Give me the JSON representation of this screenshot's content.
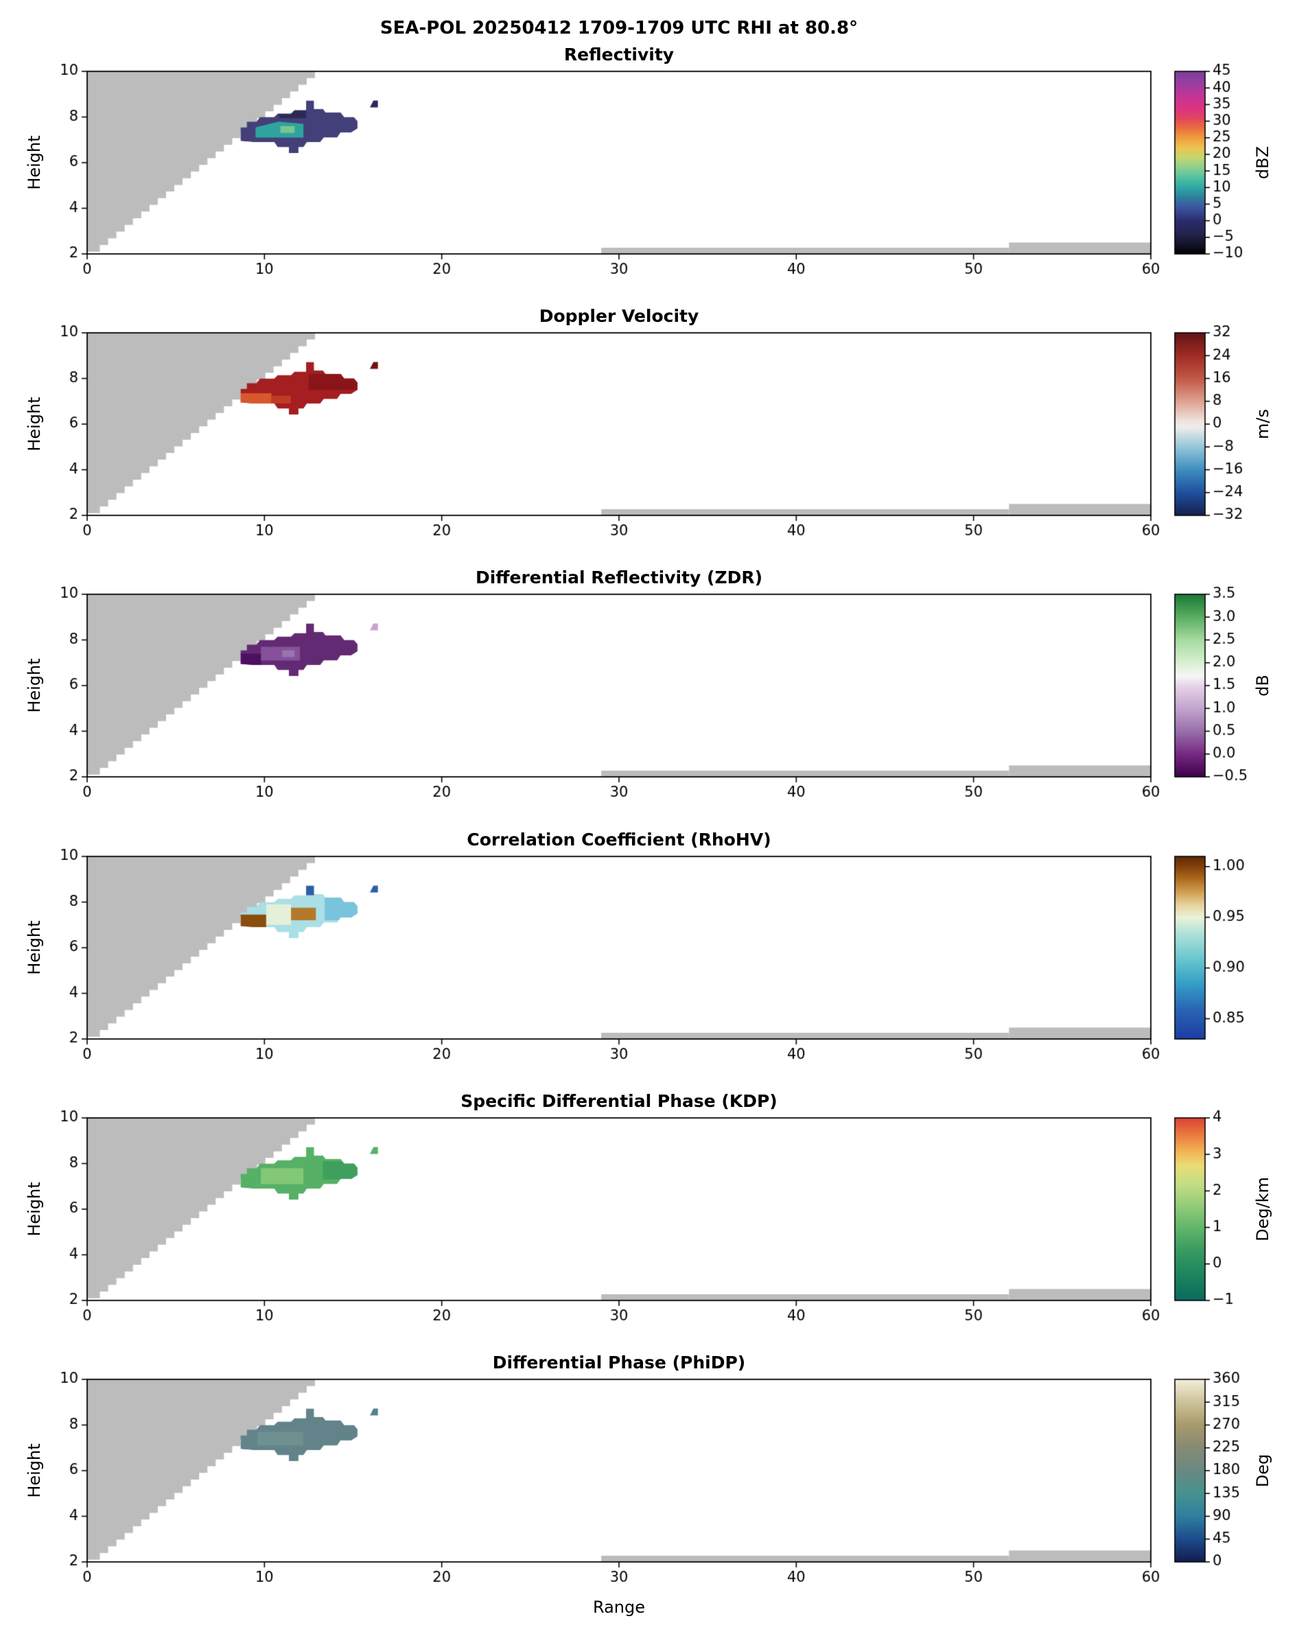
{
  "figure": {
    "title": "SEA-POL 20250412 1709-1709 UTC RHI at 80.8°",
    "xlabel": "Range",
    "ylabel": "Height",
    "background_color": "#ffffff",
    "mask_color": "#bcbcbc",
    "axis_color": "#000000"
  },
  "chart_data": {
    "type": "heatmap",
    "suptitle": "SEA-POL 20250412 1709-1709 UTC RHI at 80.8°",
    "xlabel": "Range",
    "ylabel": "Height",
    "xlim": [
      0,
      60
    ],
    "ylim": [
      2,
      10
    ],
    "x_ticks": [
      0,
      10,
      20,
      30,
      40,
      50,
      60
    ],
    "x_tick_labels": [
      "0",
      "10",
      "20",
      "30",
      "40",
      "50",
      "60"
    ],
    "y_ticks": [
      2,
      4,
      6,
      8,
      10
    ],
    "y_tick_labels": [
      "2",
      "4",
      "6",
      "8",
      "10"
    ],
    "mask": {
      "staircase": {
        "x_top": 12.85,
        "x_bottom": 0.25,
        "y_bottom": 2.1,
        "steps": 27
      },
      "strips": [
        {
          "x0": 29,
          "x1": 52,
          "y0": 2,
          "y1": 2.27
        },
        {
          "x0": 52,
          "x1": 60,
          "y0": 2,
          "y1": 2.5
        }
      ]
    },
    "echo_outline": [
      [
        8.65,
        6.95
      ],
      [
        8.65,
        7.55
      ],
      [
        9.0,
        7.55
      ],
      [
        9.0,
        7.8
      ],
      [
        9.55,
        7.8
      ],
      [
        9.75,
        8.0
      ],
      [
        10.55,
        8.0
      ],
      [
        10.75,
        8.15
      ],
      [
        11.5,
        8.15
      ],
      [
        11.7,
        8.3
      ],
      [
        12.35,
        8.3
      ],
      [
        12.35,
        8.72
      ],
      [
        12.8,
        8.72
      ],
      [
        12.8,
        8.35
      ],
      [
        13.3,
        8.35
      ],
      [
        13.45,
        8.2
      ],
      [
        14.3,
        8.2
      ],
      [
        14.5,
        8.0
      ],
      [
        15.05,
        8.0
      ],
      [
        15.25,
        7.82
      ],
      [
        15.25,
        7.5
      ],
      [
        14.9,
        7.32
      ],
      [
        14.3,
        7.32
      ],
      [
        14.1,
        7.1
      ],
      [
        13.35,
        7.1
      ],
      [
        13.15,
        6.9
      ],
      [
        12.4,
        6.9
      ],
      [
        12.2,
        6.68
      ],
      [
        11.92,
        6.68
      ],
      [
        11.92,
        6.42
      ],
      [
        11.38,
        6.42
      ],
      [
        11.38,
        6.68
      ],
      [
        10.75,
        6.68
      ],
      [
        10.55,
        6.9
      ],
      [
        9.35,
        6.9
      ]
    ],
    "echo_secondary": [
      [
        15.95,
        8.42
      ],
      [
        16.4,
        8.42
      ],
      [
        16.4,
        8.72
      ],
      [
        16.15,
        8.72
      ]
    ],
    "panels": [
      {
        "title": "Reflectivity",
        "units": "dBZ",
        "vmin": -10,
        "vmax": 45,
        "cbar_ticks": [
          -10,
          -5,
          0,
          5,
          10,
          15,
          20,
          25,
          30,
          35,
          40,
          45
        ],
        "cbar_tick_labels": [
          "−10",
          "−5",
          "0",
          "5",
          "10",
          "15",
          "20",
          "25",
          "30",
          "35",
          "40",
          "45"
        ],
        "colormap": [
          {
            "v": -10,
            "c": "#000000"
          },
          {
            "v": -7,
            "c": "#15152c"
          },
          {
            "v": -4,
            "c": "#23234c"
          },
          {
            "v": 0,
            "c": "#2b2d6e"
          },
          {
            "v": 4,
            "c": "#3c55a2"
          },
          {
            "v": 7,
            "c": "#2e7f9c"
          },
          {
            "v": 10,
            "c": "#2fa8a6"
          },
          {
            "v": 13,
            "c": "#53c1a0"
          },
          {
            "v": 16,
            "c": "#8ecf8f"
          },
          {
            "v": 19,
            "c": "#c3d76f"
          },
          {
            "v": 22,
            "c": "#eec450"
          },
          {
            "v": 25,
            "c": "#f09c3e"
          },
          {
            "v": 28,
            "c": "#ea6d3f"
          },
          {
            "v": 31,
            "c": "#e24360"
          },
          {
            "v": 34,
            "c": "#dc3383"
          },
          {
            "v": 38,
            "c": "#c03699"
          },
          {
            "v": 42,
            "c": "#93409f"
          },
          {
            "v": 45,
            "c": "#7b3d99"
          }
        ],
        "echo_base": {
          "value": 5,
          "color": "#433f78"
        },
        "echo_patches": [
          {
            "value": 11,
            "color": "#2fa49e",
            "poly": [
              [
                9.5,
                7.1
              ],
              [
                12.2,
                7.1
              ],
              [
                12.2,
                7.7
              ],
              [
                10.8,
                7.8
              ],
              [
                9.5,
                7.55
              ]
            ]
          },
          {
            "value": 15,
            "color": "#79c68c",
            "poly": [
              [
                10.9,
                7.3
              ],
              [
                11.7,
                7.3
              ],
              [
                11.7,
                7.6
              ],
              [
                10.9,
                7.6
              ]
            ]
          },
          {
            "value": 1,
            "color": "#2c2a55",
            "poly": [
              [
                10.9,
                7.95
              ],
              [
                12.35,
                7.95
              ],
              [
                12.35,
                8.3
              ],
              [
                11.7,
                8.3
              ],
              [
                11.5,
                8.15
              ],
              [
                10.75,
                8.15
              ]
            ]
          }
        ],
        "echo_secondary_color": "#2c2a55"
      },
      {
        "title": "Doppler Velocity",
        "units": "m/s",
        "vmin": -32,
        "vmax": 32,
        "cbar_ticks": [
          -32,
          -24,
          -16,
          -8,
          0,
          8,
          16,
          24,
          32
        ],
        "cbar_tick_labels": [
          "−32",
          "−24",
          "−16",
          "−8",
          "0",
          "8",
          "16",
          "24",
          "32"
        ],
        "colormap": [
          {
            "v": -32,
            "c": "#16204f"
          },
          {
            "v": -24,
            "c": "#20509e"
          },
          {
            "v": -16,
            "c": "#3e8ec0"
          },
          {
            "v": -8,
            "c": "#97c6da"
          },
          {
            "v": -1,
            "c": "#efeeec"
          },
          {
            "v": 1,
            "c": "#f0e4df"
          },
          {
            "v": 8,
            "c": "#dfa190"
          },
          {
            "v": 16,
            "c": "#c25847"
          },
          {
            "v": 24,
            "c": "#a02c24"
          },
          {
            "v": 32,
            "c": "#611317"
          }
        ],
        "echo_base": {
          "value": 26,
          "color": "#a41e22"
        },
        "echo_patches": [
          {
            "value": 17,
            "color": "#d8582c",
            "poly": [
              [
                8.65,
                6.9
              ],
              [
                10.4,
                6.9
              ],
              [
                10.4,
                7.35
              ],
              [
                8.65,
                7.35
              ]
            ]
          },
          {
            "value": 21,
            "color": "#c03a26",
            "poly": [
              [
                10.4,
                6.9
              ],
              [
                11.5,
                6.9
              ],
              [
                11.5,
                7.25
              ],
              [
                10.4,
                7.25
              ]
            ]
          },
          {
            "value": 30,
            "color": "#8a1518",
            "poly": [
              [
                12.5,
                7.5
              ],
              [
                15.25,
                7.5
              ],
              [
                15.25,
                8.2
              ],
              [
                12.5,
                8.2
              ]
            ]
          }
        ],
        "echo_secondary_color": "#6e1113"
      },
      {
        "title": "Differential Reflectivity (ZDR)",
        "units": "dB",
        "vmin": -0.5,
        "vmax": 3.5,
        "cbar_ticks": [
          -0.5,
          0,
          0.5,
          1,
          1.5,
          2,
          2.5,
          3,
          3.5
        ],
        "cbar_tick_labels": [
          "−0.5",
          "0.0",
          "0.5",
          "1.0",
          "1.5",
          "2.0",
          "2.5",
          "3.0",
          "3.5"
        ],
        "colormap": [
          {
            "v": -0.5,
            "c": "#40004b"
          },
          {
            "v": 0,
            "c": "#762a83"
          },
          {
            "v": 0.5,
            "c": "#9970ab"
          },
          {
            "v": 1.0,
            "c": "#c2a5cf"
          },
          {
            "v": 1.5,
            "c": "#e7d4e8"
          },
          {
            "v": 1.7,
            "c": "#f7f7f7"
          },
          {
            "v": 2.0,
            "c": "#d9f0d3"
          },
          {
            "v": 2.5,
            "c": "#a6dba0"
          },
          {
            "v": 3.0,
            "c": "#5aae61"
          },
          {
            "v": 3.5,
            "c": "#1b7837"
          }
        ],
        "echo_base": {
          "value": -0.15,
          "color": "#632a74"
        },
        "echo_patches": [
          {
            "value": 0.25,
            "color": "#84519a",
            "poly": [
              [
                9.8,
                7.1
              ],
              [
                12.0,
                7.1
              ],
              [
                12.0,
                7.7
              ],
              [
                9.8,
                7.7
              ]
            ]
          },
          {
            "value": -0.4,
            "color": "#4c1060",
            "poly": [
              [
                8.65,
                6.9
              ],
              [
                9.8,
                6.9
              ],
              [
                9.8,
                7.4
              ],
              [
                8.65,
                7.4
              ]
            ]
          },
          {
            "value": 0.6,
            "color": "#9a74ad",
            "poly": [
              [
                11.0,
                7.25
              ],
              [
                11.7,
                7.25
              ],
              [
                11.7,
                7.55
              ],
              [
                11.0,
                7.55
              ]
            ]
          }
        ],
        "echo_secondary_color": "#c9a3cc"
      },
      {
        "title": "Correlation Coefficient (RhoHV)",
        "units": "",
        "vmin": 0.83,
        "vmax": 1.01,
        "cbar_ticks": [
          0.85,
          0.9,
          0.95,
          1.0
        ],
        "cbar_tick_labels": [
          "0.85",
          "0.90",
          "0.95",
          "1.00"
        ],
        "colormap": [
          {
            "v": 0.83,
            "c": "#1d3ca3"
          },
          {
            "v": 0.86,
            "c": "#2a67b5"
          },
          {
            "v": 0.885,
            "c": "#35a0c6"
          },
          {
            "v": 0.91,
            "c": "#6cc8cf"
          },
          {
            "v": 0.935,
            "c": "#b2e3d9"
          },
          {
            "v": 0.95,
            "c": "#ecf2d8"
          },
          {
            "v": 0.962,
            "c": "#e7d49e"
          },
          {
            "v": 0.975,
            "c": "#cf9f52"
          },
          {
            "v": 0.988,
            "c": "#ad6a1d"
          },
          {
            "v": 1.0,
            "c": "#83400a"
          },
          {
            "v": 1.01,
            "c": "#5e2a05"
          }
        ],
        "echo_base": {
          "value": 0.945,
          "color": "#aadfe6"
        },
        "echo_patches": [
          {
            "value": 1.0,
            "color": "#8a4d0e",
            "poly": [
              [
                8.65,
                6.9
              ],
              [
                10.1,
                6.9
              ],
              [
                10.1,
                7.45
              ],
              [
                8.65,
                7.45
              ]
            ]
          },
          {
            "value": 0.96,
            "color": "#e4f0da",
            "poly": [
              [
                10.1,
                7.0
              ],
              [
                11.5,
                7.0
              ],
              [
                11.5,
                7.9
              ],
              [
                10.1,
                7.9
              ]
            ]
          },
          {
            "value": 0.99,
            "color": "#b5792b",
            "poly": [
              [
                11.5,
                7.2
              ],
              [
                12.9,
                7.2
              ],
              [
                12.9,
                7.75
              ],
              [
                11.5,
                7.75
              ]
            ]
          },
          {
            "value": 0.92,
            "color": "#79c3dd",
            "poly": [
              [
                13.4,
                7.2
              ],
              [
                15.25,
                7.2
              ],
              [
                15.25,
                8.2
              ],
              [
                13.4,
                8.2
              ]
            ]
          },
          {
            "value": 0.86,
            "color": "#2d5fa8",
            "poly": [
              [
                12.35,
                8.3
              ],
              [
                12.8,
                8.3
              ],
              [
                12.8,
                8.72
              ],
              [
                12.35,
                8.72
              ]
            ]
          }
        ],
        "echo_secondary_color": "#2d5fa8"
      },
      {
        "title": "Specific Differential Phase (KDP)",
        "units": "Deg/km",
        "vmin": -1,
        "vmax": 4,
        "cbar_ticks": [
          -1,
          0,
          1,
          2,
          3,
          4
        ],
        "cbar_tick_labels": [
          "−1",
          "0",
          "1",
          "2",
          "3",
          "4"
        ],
        "colormap": [
          {
            "v": -1,
            "c": "#0b6a5e"
          },
          {
            "v": -0.3,
            "c": "#1d845f"
          },
          {
            "v": 0.4,
            "c": "#3b9c61"
          },
          {
            "v": 1.0,
            "c": "#63b66b"
          },
          {
            "v": 1.6,
            "c": "#94cc78"
          },
          {
            "v": 2.2,
            "c": "#c4de85"
          },
          {
            "v": 2.7,
            "c": "#ecdc76"
          },
          {
            "v": 3.1,
            "c": "#f2b254"
          },
          {
            "v": 3.5,
            "c": "#ec7f41"
          },
          {
            "v": 4,
            "c": "#d94334"
          }
        ],
        "echo_base": {
          "value": 1.3,
          "color": "#56b066"
        },
        "echo_patches": [
          {
            "value": 1.8,
            "color": "#83c877",
            "poly": [
              [
                9.8,
                7.1
              ],
              [
                12.2,
                7.1
              ],
              [
                12.2,
                7.8
              ],
              [
                9.8,
                7.8
              ]
            ]
          },
          {
            "value": 0.9,
            "color": "#3fa05e",
            "poly": [
              [
                13.3,
                7.3
              ],
              [
                15.25,
                7.3
              ],
              [
                15.25,
                8.1
              ],
              [
                13.3,
                8.1
              ]
            ]
          }
        ],
        "echo_secondary_color": "#56b066"
      },
      {
        "title": "Differential Phase (PhiDP)",
        "units": "Deg",
        "vmin": 0,
        "vmax": 360,
        "cbar_ticks": [
          0,
          45,
          90,
          135,
          180,
          225,
          270,
          315,
          360
        ],
        "cbar_tick_labels": [
          "0",
          "45",
          "90",
          "135",
          "180",
          "225",
          "270",
          "315",
          "360"
        ],
        "colormap": [
          {
            "v": 0,
            "c": "#131c4f"
          },
          {
            "v": 45,
            "c": "#1d4c8c"
          },
          {
            "v": 90,
            "c": "#2f7fa0"
          },
          {
            "v": 135,
            "c": "#47928f"
          },
          {
            "v": 180,
            "c": "#698a82"
          },
          {
            "v": 225,
            "c": "#868a74"
          },
          {
            "v": 270,
            "c": "#a89a6c"
          },
          {
            "v": 315,
            "c": "#cdc39a"
          },
          {
            "v": 360,
            "c": "#f4eeda"
          }
        ],
        "echo_base": {
          "value": 205,
          "color": "#62838a"
        },
        "echo_patches": [
          {
            "value": 195,
            "color": "#6e908f",
            "poly": [
              [
                9.6,
                7.1
              ],
              [
                12.2,
                7.1
              ],
              [
                12.2,
                7.7
              ],
              [
                9.6,
                7.7
              ]
            ]
          }
        ],
        "echo_secondary_color": "#54808f"
      }
    ]
  }
}
